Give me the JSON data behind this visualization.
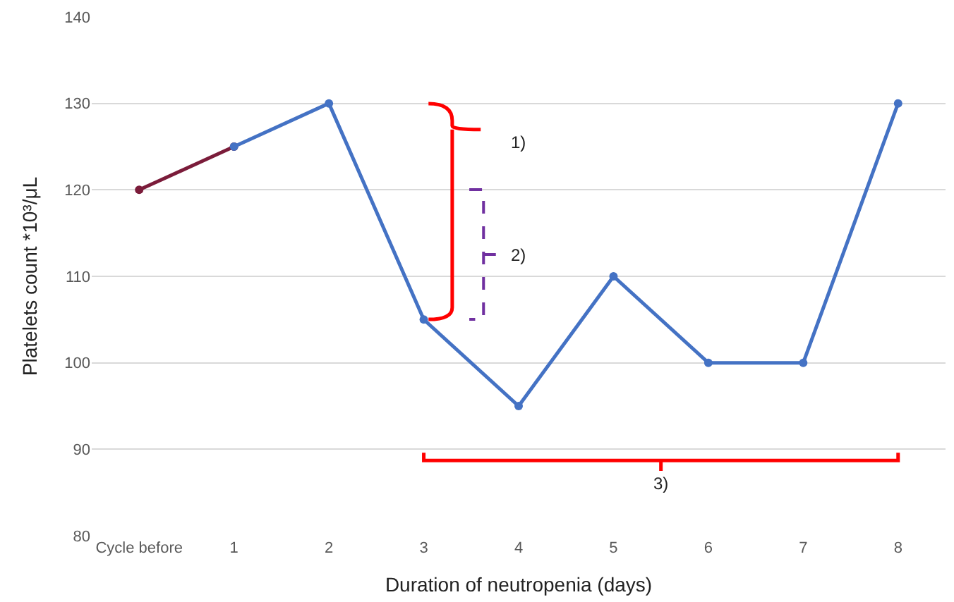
{
  "chart_data": {
    "type": "line",
    "categories": [
      "Cycle before",
      "1",
      "2",
      "3",
      "4",
      "5",
      "6",
      "7",
      "8"
    ],
    "series": [
      {
        "color": "#7b1c3a",
        "values": [
          120,
          125,
          null,
          null,
          null,
          null,
          null,
          null,
          null
        ]
      },
      {
        "color": "#4472c4",
        "values": [
          null,
          125,
          130,
          105,
          95,
          110,
          100,
          100,
          130
        ]
      }
    ],
    "xlabel": "Duration of neutropenia (days)",
    "ylabel": "Platelets count *10³/μL",
    "ylim": [
      80,
      140
    ],
    "yticks": [
      80,
      90,
      100,
      110,
      120,
      130,
      140
    ],
    "grid": "y",
    "legend": false,
    "marker": "circle",
    "line_style": "solid",
    "annotations": [
      "1)",
      "2)",
      "3)"
    ]
  }
}
